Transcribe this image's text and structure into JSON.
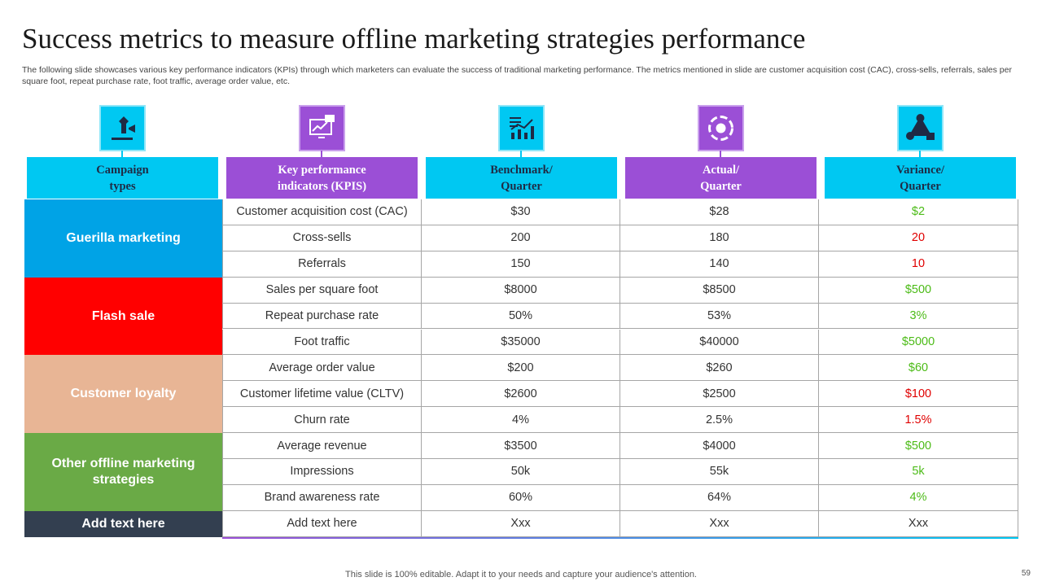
{
  "header": {
    "title": "Success metrics to measure offline marketing strategies performance",
    "subtitle": "The following slide showcases various key performance indicators (KPIs) through which marketers can evaluate the success of traditional marketing performance. The metrics mentioned in slide are customer acquisition cost (CAC), cross-sells, referrals, sales per square foot, repeat purchase rate, foot traffic, average order value, etc."
  },
  "table": {
    "headers": [
      {
        "label": "Campaign\ntypes",
        "color": "#00c8f2"
      },
      {
        "label": "Key performance\nindicators (KPIS)",
        "color": "#9b4fd6"
      },
      {
        "label": "Benchmark/\nQuarter",
        "color": "#00c8f2"
      },
      {
        "label": "Actual/\nQuarter",
        "color": "#9b4fd6"
      },
      {
        "label": "Variance/\nQuarter",
        "color": "#00c8f2"
      }
    ],
    "groups": [
      {
        "label": "Guerilla marketing",
        "color": "#00a3e6",
        "rows": [
          {
            "kpi": "Customer acquisition cost (CAC)",
            "benchmark": "$30",
            "actual": "$28",
            "variance": "$2",
            "variance_color": "#4cbb17"
          },
          {
            "kpi": "Cross-sells",
            "benchmark": "200",
            "actual": "180",
            "variance": "20",
            "variance_color": "#e00000"
          },
          {
            "kpi": "Referrals",
            "benchmark": "150",
            "actual": "140",
            "variance": "10",
            "variance_color": "#e00000"
          }
        ]
      },
      {
        "label": "Flash sale",
        "color": "#ff0000",
        "rows": [
          {
            "kpi": "Sales per square foot",
            "benchmark": "$8000",
            "actual": "$8500",
            "variance": "$500",
            "variance_color": "#4cbb17"
          },
          {
            "kpi": "Repeat purchase rate",
            "benchmark": "50%",
            "actual": "53%",
            "variance": "3%",
            "variance_color": "#4cbb17"
          },
          {
            "kpi": "Foot traffic",
            "benchmark": "$35000",
            "actual": "$40000",
            "variance": "$5000",
            "variance_color": "#4cbb17"
          }
        ]
      },
      {
        "label": "Customer loyalty",
        "color": "#e8b595",
        "rows": [
          {
            "kpi": "Average order value",
            "benchmark": "$200",
            "actual": "$260",
            "variance": "$60",
            "variance_color": "#4cbb17"
          },
          {
            "kpi": "Customer lifetime value (CLTV)",
            "benchmark": "$2600",
            "actual": "$2500",
            "variance": "$100",
            "variance_color": "#e00000"
          },
          {
            "kpi": "Churn rate",
            "benchmark": "4%",
            "actual": "2.5%",
            "variance": "1.5%",
            "variance_color": "#e00000"
          }
        ]
      },
      {
        "label": "Other offline marketing strategies",
        "color": "#6aaa46",
        "rows": [
          {
            "kpi": "Average revenue",
            "benchmark": "$3500",
            "actual": "$4000",
            "variance": "$500",
            "variance_color": "#4cbb17"
          },
          {
            "kpi": "Impressions",
            "benchmark": "50k",
            "actual": "55k",
            "variance": "5k",
            "variance_color": "#4cbb17"
          },
          {
            "kpi": "Brand awareness rate",
            "benchmark": "60%",
            "actual": "64%",
            "variance": "4%",
            "variance_color": "#4cbb17"
          }
        ]
      },
      {
        "label": "Add text here",
        "color": "#333f50",
        "rows": [
          {
            "kpi": "Add text here",
            "benchmark": "Xxx",
            "actual": "Xxx",
            "variance": "Xxx",
            "variance_color": "#333333"
          }
        ]
      }
    ]
  },
  "footer": {
    "note": "This slide is 100% editable. Adapt it to your needs and capture your audience's attention.",
    "page_number": "59"
  }
}
